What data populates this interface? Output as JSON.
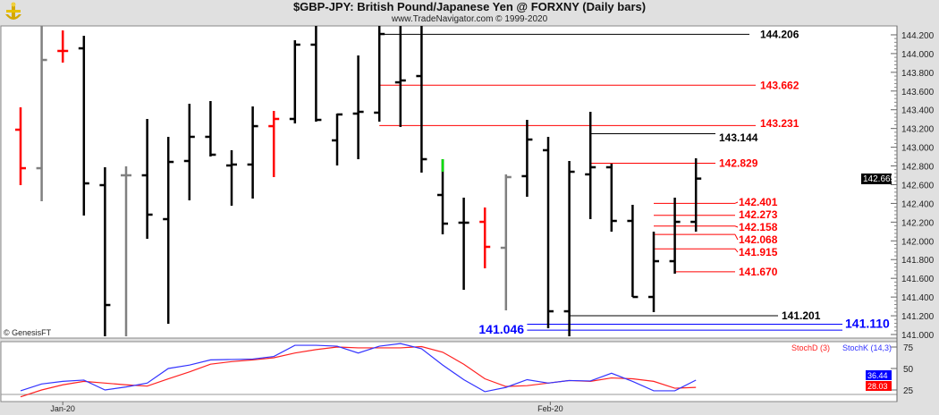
{
  "header": {
    "title": "$GBP-JPY:  British Pound/Japanese Yen @ FORXNY  (Daily bars)",
    "subtitle": "www.TradeNavigator.com © 1999-2020",
    "copyright": "© GenesisFT"
  },
  "colors": {
    "up": "#000000",
    "down": "#ff0000",
    "neutral": "#808080",
    "green": "#00dd00",
    "blue": "#0000ff",
    "stochK": "#3333ff",
    "stochD": "#ff2222"
  },
  "price_axis": {
    "labels": [
      "144.200",
      "144.000",
      "143.800",
      "143.600",
      "143.400",
      "143.200",
      "143.000",
      "142.800",
      "142.600",
      "142.400",
      "142.200",
      "142.000",
      "141.800",
      "141.600",
      "141.400",
      "141.200",
      "141.000"
    ],
    "last_price": "142.665"
  },
  "date_axis": {
    "labels": [
      {
        "text": "Jan-20",
        "bar": 2
      },
      {
        "text": "Feb-20",
        "bar": 25.1
      }
    ]
  },
  "bars": [
    {
      "o": 143.187,
      "h": 143.426,
      "l": 142.595,
      "c": 142.776,
      "color": "down"
    },
    {
      "o": 142.776,
      "h": 144.295,
      "l": 142.423,
      "c": 143.932,
      "color": "neutral"
    },
    {
      "o": 144.028,
      "h": 144.247,
      "l": 143.904,
      "c": 144.028,
      "color": "down"
    },
    {
      "o": 144.056,
      "h": 144.19,
      "l": 142.27,
      "c": 142.614,
      "color": "up"
    },
    {
      "o": 142.595,
      "h": 142.786,
      "l": 140.981,
      "c": 141.315,
      "color": "up"
    },
    {
      "o": 142.7,
      "h": 142.796,
      "l": 140.981,
      "c": 142.7,
      "color": "neutral"
    },
    {
      "o": 142.7,
      "h": 143.302,
      "l": 142.022,
      "c": 142.28,
      "color": "up"
    },
    {
      "o": 142.232,
      "h": 143.111,
      "l": 141.115,
      "c": 142.843,
      "color": "up"
    },
    {
      "o": 142.853,
      "h": 143.464,
      "l": 142.433,
      "c": 143.111,
      "color": "up"
    },
    {
      "o": 143.111,
      "h": 143.493,
      "l": 142.901,
      "c": 142.92,
      "color": "up"
    },
    {
      "o": 142.805,
      "h": 142.968,
      "l": 142.375,
      "c": 142.815,
      "color": "up"
    },
    {
      "o": 142.815,
      "h": 143.436,
      "l": 142.452,
      "c": 143.225,
      "color": "up"
    },
    {
      "o": 143.225,
      "h": 143.388,
      "l": 142.681,
      "c": 143.302,
      "color": "down"
    },
    {
      "o": 143.302,
      "h": 144.142,
      "l": 143.254,
      "c": 144.095,
      "color": "up"
    },
    {
      "o": 144.095,
      "h": 144.295,
      "l": 143.273,
      "c": 143.292,
      "color": "up"
    },
    {
      "o": 143.073,
      "h": 143.359,
      "l": 142.805,
      "c": 143.35,
      "color": "up"
    },
    {
      "o": 143.359,
      "h": 143.98,
      "l": 142.872,
      "c": 143.378,
      "color": "up"
    },
    {
      "o": 143.369,
      "h": 144.295,
      "l": 143.273,
      "c": 144.209,
      "color": "up"
    },
    {
      "o": 143.693,
      "h": 144.295,
      "l": 143.216,
      "c": 143.713,
      "color": "up"
    },
    {
      "o": 143.76,
      "h": 144.295,
      "l": 142.729,
      "c": 142.872,
      "color": "up"
    },
    {
      "o": 142.49,
      "h": 142.872,
      "l": 142.07,
      "c": 142.184,
      "color": "up",
      "green_top": 142.738
    },
    {
      "o": 142.194,
      "h": 142.461,
      "l": 141.478,
      "c": 142.194,
      "color": "up"
    },
    {
      "o": 142.203,
      "h": 142.356,
      "l": 141.707,
      "c": 141.936,
      "color": "down"
    },
    {
      "o": 141.926,
      "h": 142.71,
      "l": 141.258,
      "c": 142.681,
      "color": "neutral"
    },
    {
      "o": 142.691,
      "h": 143.292,
      "l": 142.471,
      "c": 143.082,
      "color": "up"
    },
    {
      "o": 142.968,
      "h": 143.111,
      "l": 141.067,
      "c": 141.248,
      "color": "up"
    },
    {
      "o": 141.248,
      "h": 142.853,
      "l": 140.981,
      "c": 142.738,
      "color": "up"
    },
    {
      "o": 142.71,
      "h": 143.378,
      "l": 142.232,
      "c": 142.786,
      "color": "up"
    },
    {
      "o": 142.786,
      "h": 142.824,
      "l": 142.098,
      "c": 142.213,
      "color": "up"
    },
    {
      "o": 142.213,
      "h": 142.385,
      "l": 141.401,
      "c": 141.401,
      "color": "up"
    },
    {
      "o": 141.401,
      "h": 142.098,
      "l": 141.239,
      "c": 141.783,
      "color": "up"
    },
    {
      "o": 141.783,
      "h": 142.461,
      "l": 141.649,
      "c": 142.203,
      "color": "up"
    },
    {
      "o": 142.203,
      "h": 142.882,
      "l": 142.098,
      "c": 142.665,
      "color": "up"
    }
  ],
  "levels": [
    {
      "value": 144.206,
      "label": "144.206",
      "color": "#000000",
      "from_bar": 17
    },
    {
      "value": 143.662,
      "label": "143.662",
      "color": "#ff0000",
      "from_bar": 17
    },
    {
      "value": 143.231,
      "label": "143.231",
      "color": "#ff0000",
      "from_bar": 17
    },
    {
      "value": 143.144,
      "label": "143.144",
      "color": "#000000",
      "from_bar": 27
    },
    {
      "value": 142.829,
      "label": "142.829",
      "color": "#ff0000",
      "from_bar": 27
    },
    {
      "value": 142.401,
      "label": "142.401",
      "color": "#ff0000",
      "from_bar": 30
    },
    {
      "value": 142.273,
      "label": "142.273",
      "color": "#ff0000",
      "from_bar": 30
    },
    {
      "value": 142.158,
      "label": "142.158",
      "color": "#ff0000",
      "from_bar": 30
    },
    {
      "value": 142.068,
      "label": "142.068",
      "color": "#ff0000",
      "from_bar": 30
    },
    {
      "value": 141.915,
      "label": "141.915",
      "color": "#ff0000",
      "from_bar": 30
    },
    {
      "value": 141.67,
      "label": "141.670",
      "color": "#ff0000",
      "from_bar": 31
    },
    {
      "value": 141.201,
      "label": "141.201",
      "color": "#000000",
      "from_bar": 26
    },
    {
      "value": 141.11,
      "label": "141.110",
      "color": "#0000ff",
      "from_bar": 24
    },
    {
      "value": 141.046,
      "label": "141.046",
      "color": "#0000ff",
      "from_bar": 24
    }
  ],
  "stochastic": {
    "d_label": "StochD (3)",
    "k_label": "StochK (14,3)",
    "axis_labels": [
      "75",
      "50",
      "25"
    ],
    "k_last": "36.44",
    "d_last": "28.03",
    "k": [
      24,
      32,
      35,
      36.5,
      25,
      28.5,
      33,
      50,
      54,
      60,
      60.5,
      61,
      64,
      77,
      77,
      76,
      68,
      76,
      79,
      73,
      54,
      37,
      23,
      28,
      37,
      33,
      36,
      35.5,
      44.5,
      35,
      24,
      24,
      36.44
    ],
    "d": [
      17,
      25,
      31,
      35,
      33,
      31,
      29.5,
      38,
      46,
      55,
      58,
      60,
      62.5,
      68,
      72,
      75,
      74,
      74,
      74,
      75.5,
      69,
      55,
      38,
      29,
      30,
      33,
      36,
      35,
      39,
      38,
      35,
      27,
      28.03
    ]
  }
}
